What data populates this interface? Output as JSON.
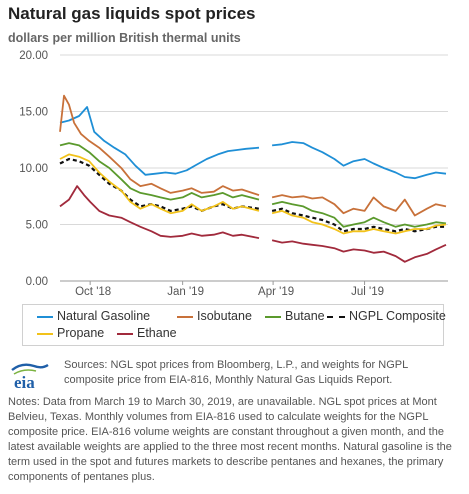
{
  "title": "Natural gas liquids spot prices",
  "subtitle": "dollars per million British thermal units",
  "logo_text": "eia",
  "colors": {
    "natural_gasoline": "#1f8fd6",
    "isobutane": "#c8713a",
    "butane": "#5b9a2d",
    "ngpl_composite": "#111111",
    "propane": "#f2c21a",
    "ethane": "#a12a3c",
    "grid": "#d9d9d9",
    "axis_text": "#555555"
  },
  "legend": [
    {
      "key": "natural_gasoline",
      "label": "Natural Gasoline"
    },
    {
      "key": "isobutane",
      "label": "Isobutane"
    },
    {
      "key": "butane",
      "label": "Butane"
    },
    {
      "key": "ngpl_composite",
      "label": "NGPL Composite"
    },
    {
      "key": "propane",
      "label": "Propane"
    },
    {
      "key": "ethane",
      "label": "Ethane"
    }
  ],
  "source_text": "Sources: NGL spot prices from Bloomberg, L.P., and weights for NGPL composite price from EIA-816, Monthly Natural Gas Liquids Report.",
  "notes_text": "Notes: Data from March 19 to March 30, 2019, are unavailable. NGL spot prices at Mont Belvieu, Texas. Monthly volumes from EIA-816 used to calculate weights for the NGPL composite price. EIA-816 volume weights are constant throughout a given month, and the latest available weights are applied to the three most recent months. Natural gasoline is the term used in the spot and futures markets to describe pentanes and hexanes, the primary components of pentanes plus.",
  "chart_data": {
    "type": "line",
    "x_range": [
      "2018-09-01",
      "2019-09-22"
    ],
    "ylim": [
      0,
      20
    ],
    "yticks": [
      "0.00",
      "5.00",
      "10.00",
      "15.00",
      "20.00"
    ],
    "xticks": [
      {
        "date": "2018-10-01",
        "label": "Oct '18"
      },
      {
        "date": "2019-01-01",
        "label": "Jan '19"
      },
      {
        "date": "2019-04-01",
        "label": "Apr '19"
      },
      {
        "date": "2019-07-01",
        "label": "Jul '19"
      }
    ],
    "grid": true,
    "legend_position": "bottom",
    "gap": [
      "2019-03-19",
      "2019-03-30"
    ],
    "series": [
      {
        "key": "natural_gasoline",
        "name": "Natural Gasoline",
        "dashed": false,
        "points": [
          [
            "2018-09-01",
            14.0
          ],
          [
            "2018-09-10",
            14.2
          ],
          [
            "2018-09-20",
            14.6
          ],
          [
            "2018-09-28",
            15.4
          ],
          [
            "2018-10-05",
            13.2
          ],
          [
            "2018-10-15",
            12.4
          ],
          [
            "2018-10-25",
            11.8
          ],
          [
            "2018-11-05",
            11.2
          ],
          [
            "2018-11-15",
            10.2
          ],
          [
            "2018-11-25",
            9.4
          ],
          [
            "2018-12-05",
            9.5
          ],
          [
            "2018-12-15",
            9.6
          ],
          [
            "2018-12-25",
            9.5
          ],
          [
            "2019-01-05",
            9.8
          ],
          [
            "2019-01-15",
            10.3
          ],
          [
            "2019-01-25",
            10.8
          ],
          [
            "2019-02-05",
            11.2
          ],
          [
            "2019-02-15",
            11.5
          ],
          [
            "2019-02-25",
            11.6
          ],
          [
            "2019-03-05",
            11.7
          ],
          [
            "2019-03-18",
            11.8
          ],
          [
            "2019-03-31",
            12.0
          ],
          [
            "2019-04-10",
            12.1
          ],
          [
            "2019-04-20",
            12.3
          ],
          [
            "2019-05-01",
            12.2
          ],
          [
            "2019-05-10",
            11.8
          ],
          [
            "2019-05-20",
            11.4
          ],
          [
            "2019-06-01",
            10.8
          ],
          [
            "2019-06-10",
            10.2
          ],
          [
            "2019-06-20",
            10.6
          ],
          [
            "2019-07-01",
            10.8
          ],
          [
            "2019-07-10",
            10.4
          ],
          [
            "2019-07-20",
            10.0
          ],
          [
            "2019-08-01",
            9.6
          ],
          [
            "2019-08-10",
            9.2
          ],
          [
            "2019-08-20",
            9.1
          ],
          [
            "2019-09-01",
            9.4
          ],
          [
            "2019-09-10",
            9.6
          ],
          [
            "2019-09-20",
            9.5
          ]
        ]
      },
      {
        "key": "isobutane",
        "name": "Isobutane",
        "dashed": false,
        "points": [
          [
            "2018-09-01",
            13.2
          ],
          [
            "2018-09-05",
            16.4
          ],
          [
            "2018-09-10",
            15.6
          ],
          [
            "2018-09-15",
            14.0
          ],
          [
            "2018-09-22",
            13.0
          ],
          [
            "2018-09-30",
            12.4
          ],
          [
            "2018-10-10",
            11.8
          ],
          [
            "2018-10-20",
            11.0
          ],
          [
            "2018-11-01",
            10.0
          ],
          [
            "2018-11-10",
            9.0
          ],
          [
            "2018-11-20",
            8.4
          ],
          [
            "2018-12-01",
            8.6
          ],
          [
            "2018-12-10",
            8.2
          ],
          [
            "2018-12-20",
            7.8
          ],
          [
            "2019-01-01",
            8.0
          ],
          [
            "2019-01-10",
            8.2
          ],
          [
            "2019-01-20",
            7.8
          ],
          [
            "2019-02-01",
            7.9
          ],
          [
            "2019-02-10",
            8.4
          ],
          [
            "2019-02-20",
            8.0
          ],
          [
            "2019-03-01",
            8.1
          ],
          [
            "2019-03-18",
            7.6
          ],
          [
            "2019-03-31",
            7.4
          ],
          [
            "2019-04-10",
            7.6
          ],
          [
            "2019-04-20",
            7.4
          ],
          [
            "2019-05-01",
            7.5
          ],
          [
            "2019-05-10",
            7.3
          ],
          [
            "2019-05-20",
            7.4
          ],
          [
            "2019-06-01",
            6.8
          ],
          [
            "2019-06-10",
            6.0
          ],
          [
            "2019-06-20",
            6.4
          ],
          [
            "2019-07-01",
            6.2
          ],
          [
            "2019-07-10",
            7.4
          ],
          [
            "2019-07-20",
            6.6
          ],
          [
            "2019-08-01",
            6.2
          ],
          [
            "2019-08-10",
            7.2
          ],
          [
            "2019-08-20",
            5.8
          ],
          [
            "2019-09-01",
            6.4
          ],
          [
            "2019-09-10",
            6.8
          ],
          [
            "2019-09-20",
            6.6
          ]
        ]
      },
      {
        "key": "butane",
        "name": "Butane",
        "dashed": false,
        "points": [
          [
            "2018-09-01",
            12.0
          ],
          [
            "2018-09-10",
            12.2
          ],
          [
            "2018-09-20",
            12.0
          ],
          [
            "2018-09-30",
            11.4
          ],
          [
            "2018-10-10",
            10.6
          ],
          [
            "2018-10-20",
            10.0
          ],
          [
            "2018-11-01",
            9.0
          ],
          [
            "2018-11-10",
            8.2
          ],
          [
            "2018-11-20",
            7.8
          ],
          [
            "2018-12-01",
            7.6
          ],
          [
            "2018-12-10",
            7.4
          ],
          [
            "2018-12-20",
            7.2
          ],
          [
            "2019-01-01",
            7.4
          ],
          [
            "2019-01-10",
            7.8
          ],
          [
            "2019-01-20",
            7.4
          ],
          [
            "2019-02-01",
            7.6
          ],
          [
            "2019-02-10",
            7.8
          ],
          [
            "2019-02-20",
            7.4
          ],
          [
            "2019-03-01",
            7.6
          ],
          [
            "2019-03-18",
            7.2
          ],
          [
            "2019-03-31",
            6.8
          ],
          [
            "2019-04-10",
            7.0
          ],
          [
            "2019-04-20",
            6.8
          ],
          [
            "2019-05-01",
            6.6
          ],
          [
            "2019-05-10",
            6.2
          ],
          [
            "2019-05-20",
            6.0
          ],
          [
            "2019-06-01",
            5.6
          ],
          [
            "2019-06-10",
            4.8
          ],
          [
            "2019-06-20",
            5.0
          ],
          [
            "2019-07-01",
            5.2
          ],
          [
            "2019-07-10",
            5.6
          ],
          [
            "2019-07-20",
            5.2
          ],
          [
            "2019-08-01",
            4.8
          ],
          [
            "2019-08-10",
            5.0
          ],
          [
            "2019-08-20",
            4.8
          ],
          [
            "2019-09-01",
            5.0
          ],
          [
            "2019-09-10",
            5.2
          ],
          [
            "2019-09-20",
            5.1
          ]
        ]
      },
      {
        "key": "ngpl_composite",
        "name": "NGPL Composite",
        "dashed": true,
        "points": [
          [
            "2018-09-01",
            10.4
          ],
          [
            "2018-09-10",
            10.8
          ],
          [
            "2018-09-20",
            10.6
          ],
          [
            "2018-09-30",
            10.2
          ],
          [
            "2018-10-10",
            9.4
          ],
          [
            "2018-10-20",
            8.6
          ],
          [
            "2018-11-01",
            8.0
          ],
          [
            "2018-11-10",
            7.2
          ],
          [
            "2018-11-20",
            6.6
          ],
          [
            "2018-12-01",
            6.8
          ],
          [
            "2018-12-10",
            6.6
          ],
          [
            "2018-12-20",
            6.2
          ],
          [
            "2019-01-01",
            6.4
          ],
          [
            "2019-01-10",
            6.6
          ],
          [
            "2019-01-20",
            6.2
          ],
          [
            "2019-02-01",
            6.6
          ],
          [
            "2019-02-10",
            6.8
          ],
          [
            "2019-02-20",
            6.4
          ],
          [
            "2019-03-01",
            6.6
          ],
          [
            "2019-03-18",
            6.4
          ],
          [
            "2019-03-31",
            6.2
          ],
          [
            "2019-04-10",
            6.4
          ],
          [
            "2019-04-20",
            6.0
          ],
          [
            "2019-05-01",
            5.8
          ],
          [
            "2019-05-10",
            5.6
          ],
          [
            "2019-05-20",
            5.4
          ],
          [
            "2019-06-01",
            5.0
          ],
          [
            "2019-06-10",
            4.4
          ],
          [
            "2019-06-20",
            4.6
          ],
          [
            "2019-07-01",
            4.6
          ],
          [
            "2019-07-10",
            4.8
          ],
          [
            "2019-07-20",
            4.6
          ],
          [
            "2019-08-01",
            4.4
          ],
          [
            "2019-08-10",
            4.6
          ],
          [
            "2019-08-20",
            4.4
          ],
          [
            "2019-09-01",
            4.6
          ],
          [
            "2019-09-10",
            4.8
          ],
          [
            "2019-09-20",
            4.8
          ]
        ]
      },
      {
        "key": "propane",
        "name": "Propane",
        "dashed": false,
        "points": [
          [
            "2018-09-01",
            10.8
          ],
          [
            "2018-09-10",
            11.2
          ],
          [
            "2018-09-20",
            11.0
          ],
          [
            "2018-09-30",
            10.6
          ],
          [
            "2018-10-10",
            9.6
          ],
          [
            "2018-10-20",
            8.8
          ],
          [
            "2018-11-01",
            8.0
          ],
          [
            "2018-11-10",
            7.0
          ],
          [
            "2018-11-20",
            6.4
          ],
          [
            "2018-12-01",
            6.8
          ],
          [
            "2018-12-10",
            6.4
          ],
          [
            "2018-12-20",
            6.0
          ],
          [
            "2019-01-01",
            6.2
          ],
          [
            "2019-01-10",
            6.8
          ],
          [
            "2019-01-20",
            6.2
          ],
          [
            "2019-02-01",
            6.6
          ],
          [
            "2019-02-10",
            7.0
          ],
          [
            "2019-02-20",
            6.4
          ],
          [
            "2019-03-01",
            6.6
          ],
          [
            "2019-03-18",
            6.2
          ],
          [
            "2019-03-31",
            6.0
          ],
          [
            "2019-04-10",
            6.2
          ],
          [
            "2019-04-20",
            5.8
          ],
          [
            "2019-05-01",
            5.6
          ],
          [
            "2019-05-10",
            5.2
          ],
          [
            "2019-05-20",
            5.0
          ],
          [
            "2019-06-01",
            4.6
          ],
          [
            "2019-06-10",
            4.2
          ],
          [
            "2019-06-20",
            4.4
          ],
          [
            "2019-07-01",
            4.4
          ],
          [
            "2019-07-10",
            4.6
          ],
          [
            "2019-07-20",
            4.4
          ],
          [
            "2019-08-01",
            4.2
          ],
          [
            "2019-08-10",
            4.4
          ],
          [
            "2019-08-20",
            4.6
          ],
          [
            "2019-09-01",
            4.6
          ],
          [
            "2019-09-10",
            4.9
          ],
          [
            "2019-09-20",
            5.0
          ]
        ]
      },
      {
        "key": "ethane",
        "name": "Ethane",
        "dashed": false,
        "points": [
          [
            "2018-09-01",
            6.6
          ],
          [
            "2018-09-10",
            7.2
          ],
          [
            "2018-09-18",
            8.4
          ],
          [
            "2018-09-25",
            7.6
          ],
          [
            "2018-10-01",
            7.0
          ],
          [
            "2018-10-10",
            6.2
          ],
          [
            "2018-10-20",
            5.8
          ],
          [
            "2018-11-01",
            5.6
          ],
          [
            "2018-11-10",
            5.2
          ],
          [
            "2018-11-20",
            4.8
          ],
          [
            "2018-12-01",
            4.4
          ],
          [
            "2018-12-10",
            4.0
          ],
          [
            "2018-12-20",
            3.9
          ],
          [
            "2019-01-01",
            4.0
          ],
          [
            "2019-01-10",
            4.2
          ],
          [
            "2019-01-20",
            4.0
          ],
          [
            "2019-02-01",
            4.1
          ],
          [
            "2019-02-10",
            4.3
          ],
          [
            "2019-02-20",
            4.0
          ],
          [
            "2019-03-01",
            4.1
          ],
          [
            "2019-03-18",
            3.8
          ],
          [
            "2019-03-31",
            3.6
          ],
          [
            "2019-04-10",
            3.4
          ],
          [
            "2019-04-20",
            3.5
          ],
          [
            "2019-05-01",
            3.3
          ],
          [
            "2019-05-10",
            3.2
          ],
          [
            "2019-05-20",
            3.1
          ],
          [
            "2019-06-01",
            2.9
          ],
          [
            "2019-06-10",
            2.6
          ],
          [
            "2019-06-20",
            2.8
          ],
          [
            "2019-07-01",
            2.7
          ],
          [
            "2019-07-10",
            2.5
          ],
          [
            "2019-07-20",
            2.6
          ],
          [
            "2019-08-01",
            2.2
          ],
          [
            "2019-08-10",
            1.7
          ],
          [
            "2019-08-20",
            2.1
          ],
          [
            "2019-09-01",
            2.4
          ],
          [
            "2019-09-10",
            2.8
          ],
          [
            "2019-09-20",
            3.2
          ]
        ]
      }
    ]
  }
}
